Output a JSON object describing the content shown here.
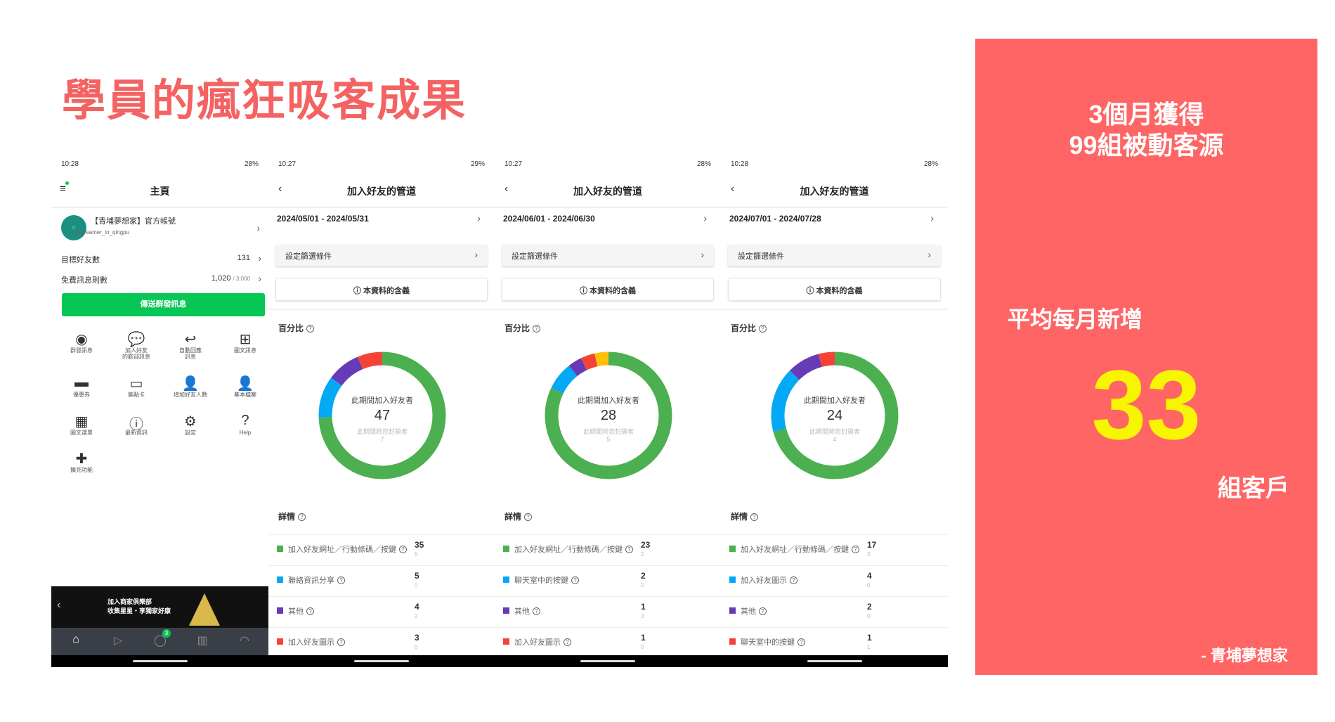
{
  "colors": {
    "accent": "#F46262",
    "panel": "#FF6565",
    "highlight": "#F7F500",
    "green": "#4CAF50",
    "line_green": "#06C755",
    "blue": "#03A9F4",
    "purple": "#673AB7",
    "red": "#F44336",
    "yellow": "#FFC107"
  },
  "headline": "學員的瘋狂吸客成果",
  "home_phone": {
    "status": {
      "time": "10:28",
      "battery": "28%"
    },
    "title": "主頁",
    "menu_icon": "hamburger-menu-icon",
    "account": {
      "name": "【青埔夢想家】官方帳號",
      "handle": "@dreamer_in_qingpu"
    },
    "stats": [
      {
        "label": "目標好友數",
        "value": "131",
        "suffix": ""
      },
      {
        "label": "免費訊息則數",
        "value": "1,020",
        "suffix": "/ 3,000"
      }
    ],
    "broadcast_button": "傳送群發訊息",
    "grid": [
      {
        "label": "群發訊息",
        "icon": "broadcast-icon",
        "glyph": "◉"
      },
      {
        "label": "加入好友\n的歡迎訊息",
        "icon": "hi-bubble-icon",
        "glyph": "💬"
      },
      {
        "label": "自動回應\n訊息",
        "icon": "reply-icon",
        "glyph": "↩"
      },
      {
        "label": "圖文訊息",
        "icon": "rich-message-icon",
        "glyph": "⊞"
      },
      {
        "label": "優惠券",
        "icon": "coupon-icon",
        "glyph": "▬"
      },
      {
        "label": "集點卡",
        "icon": "point-card-icon",
        "glyph": "▭"
      },
      {
        "label": "增加好友人數",
        "icon": "add-friend-icon",
        "glyph": "👤"
      },
      {
        "label": "基本檔案",
        "icon": "profile-edit-icon",
        "glyph": "👤"
      },
      {
        "label": "圖文選單",
        "icon": "rich-menu-icon",
        "glyph": "▦"
      },
      {
        "label": "最新資訊",
        "icon": "info-icon",
        "glyph": "ⓘ"
      },
      {
        "label": "設定",
        "icon": "gear-icon",
        "glyph": "⚙"
      },
      {
        "label": "Help",
        "icon": "help-icon",
        "glyph": "?"
      },
      {
        "label": "擴充功能",
        "icon": "puzzle-icon",
        "glyph": "✚"
      }
    ],
    "banner": {
      "line1": "加入商家俱樂部",
      "line2": "收集星星・享獨家好康"
    },
    "tabbar": [
      {
        "icon": "home-icon",
        "glyph": "⌂"
      },
      {
        "icon": "play-icon",
        "glyph": "▷"
      },
      {
        "icon": "chat-icon",
        "glyph": "◯",
        "badge": "3"
      },
      {
        "icon": "chart-icon",
        "glyph": "▥"
      },
      {
        "icon": "bell-icon",
        "glyph": "◠"
      }
    ]
  },
  "channel_phones": [
    {
      "status": {
        "time": "10:27",
        "battery": "29%"
      },
      "title": "加入好友的管道",
      "date_range": "2024/05/01 - 2024/05/31",
      "filter": "設定篩選條件",
      "info": "ⓘ 本資料的含義",
      "percent_label": "百分比",
      "center_label": "此期間加入好友者",
      "total": "47",
      "blocked_label": "此期間將您封鎖者",
      "blocked": "7",
      "details_label": "詳情",
      "rows": [
        {
          "label": "加入好友網址／行動條碼／按鍵",
          "value": 35,
          "blocked": "5",
          "color": "#4CAF50"
        },
        {
          "label": "聯絡資訊分享",
          "value": 5,
          "blocked": "0",
          "color": "#03A9F4"
        },
        {
          "label": "其他",
          "value": 4,
          "blocked": "2",
          "color": "#673AB7"
        },
        {
          "label": "加入好友圖示",
          "value": 3,
          "blocked": "0",
          "color": "#F44336"
        }
      ],
      "extra_segments": []
    },
    {
      "status": {
        "time": "10:27",
        "battery": "28%"
      },
      "title": "加入好友的管道",
      "date_range": "2024/06/01 - 2024/06/30",
      "filter": "設定篩選條件",
      "info": "ⓘ 本資料的含義",
      "percent_label": "百分比",
      "center_label": "此期間加入好友者",
      "total": "28",
      "blocked_label": "此期間將您封鎖者",
      "blocked": "5",
      "details_label": "詳情",
      "rows": [
        {
          "label": "加入好友網址／行動條碼／按鍵",
          "value": 23,
          "blocked": "2",
          "color": "#4CAF50"
        },
        {
          "label": "聊天室中的按鍵",
          "value": 2,
          "blocked": "0",
          "color": "#03A9F4"
        },
        {
          "label": "其他",
          "value": 1,
          "blocked": "3",
          "color": "#673AB7"
        },
        {
          "label": "加入好友圖示",
          "value": 1,
          "blocked": "0",
          "color": "#F44336"
        }
      ],
      "extra_segments": [
        {
          "value": 1,
          "color": "#FFC107"
        }
      ]
    },
    {
      "status": {
        "time": "10:28",
        "battery": "28%"
      },
      "title": "加入好友的管道",
      "date_range": "2024/07/01 - 2024/07/28",
      "filter": "設定篩選條件",
      "info": "ⓘ 本資料的含義",
      "percent_label": "百分比",
      "center_label": "此期間加入好友者",
      "total": "24",
      "blocked_label": "此期間將您封鎖者",
      "blocked": "4",
      "details_label": "詳情",
      "rows": [
        {
          "label": "加入好友網址／行動條碼／按鍵",
          "value": 17,
          "blocked": "3",
          "color": "#4CAF50"
        },
        {
          "label": "加入好友圖示",
          "value": 4,
          "blocked": "0",
          "color": "#03A9F4"
        },
        {
          "label": "其他",
          "value": 2,
          "blocked": "0",
          "color": "#673AB7"
        },
        {
          "label": "聊天室中的按鍵",
          "value": 1,
          "blocked": "1",
          "color": "#F44336"
        }
      ],
      "extra_segments": []
    }
  ],
  "panel": {
    "line1": "3個月獲得",
    "line2": "99組被動客源",
    "avg_label": "平均每月新增",
    "big_number": "33",
    "unit": "組客戶",
    "signature": "- 青埔夢想家"
  }
}
